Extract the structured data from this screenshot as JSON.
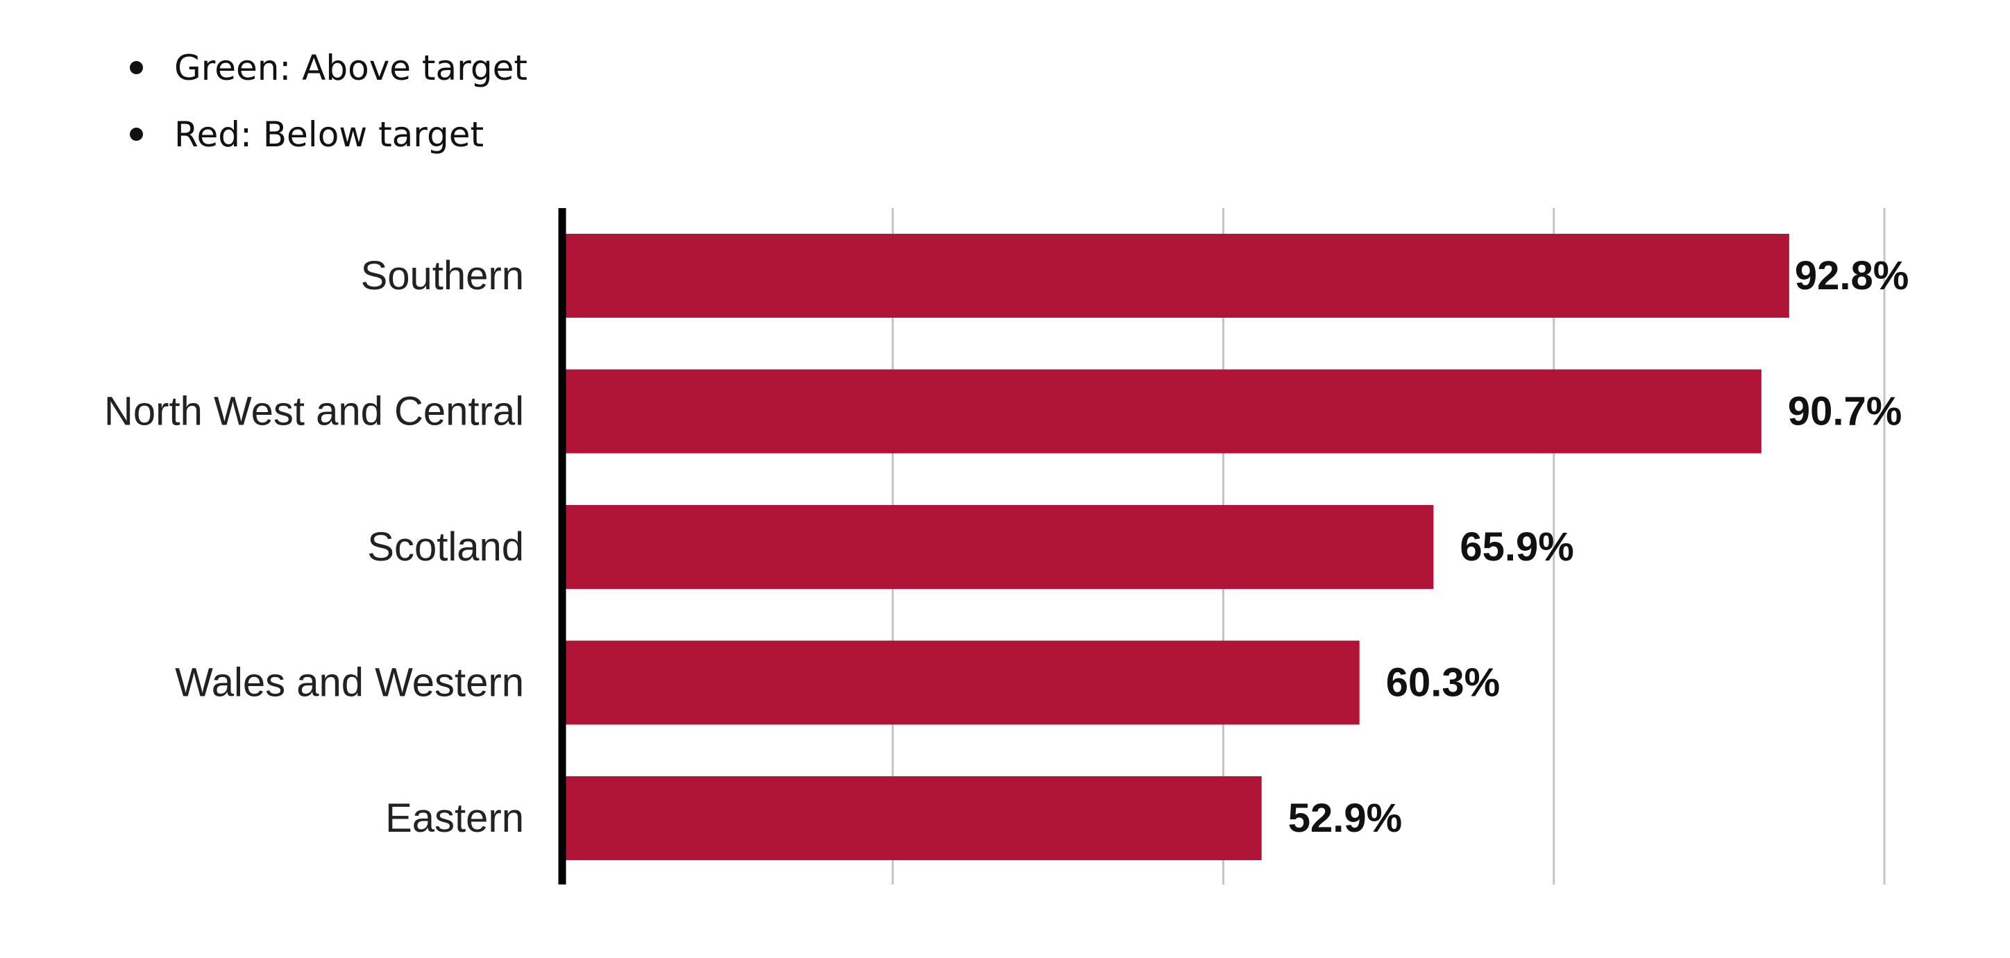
{
  "legend": {
    "items": [
      {
        "label": "Green: Above target",
        "color": "#2e8b3d"
      },
      {
        "label": "Red: Below target",
        "color": "#b01538"
      }
    ]
  },
  "chart_data": {
    "type": "bar",
    "orientation": "horizontal",
    "categories": [
      "Southern",
      "North West and Central",
      "Scotland",
      "Wales and Western",
      "Eastern"
    ],
    "values": [
      92.8,
      90.7,
      65.9,
      60.3,
      52.9
    ],
    "value_labels": [
      "92.8%",
      "90.7%",
      "65.9%",
      "60.3%",
      "52.9%"
    ],
    "bar_color": "#b01538",
    "xlim": [
      0,
      100
    ],
    "x_gridlines": [
      25,
      50,
      75,
      100
    ],
    "grid": true,
    "title": "",
    "xlabel": "",
    "ylabel": ""
  }
}
